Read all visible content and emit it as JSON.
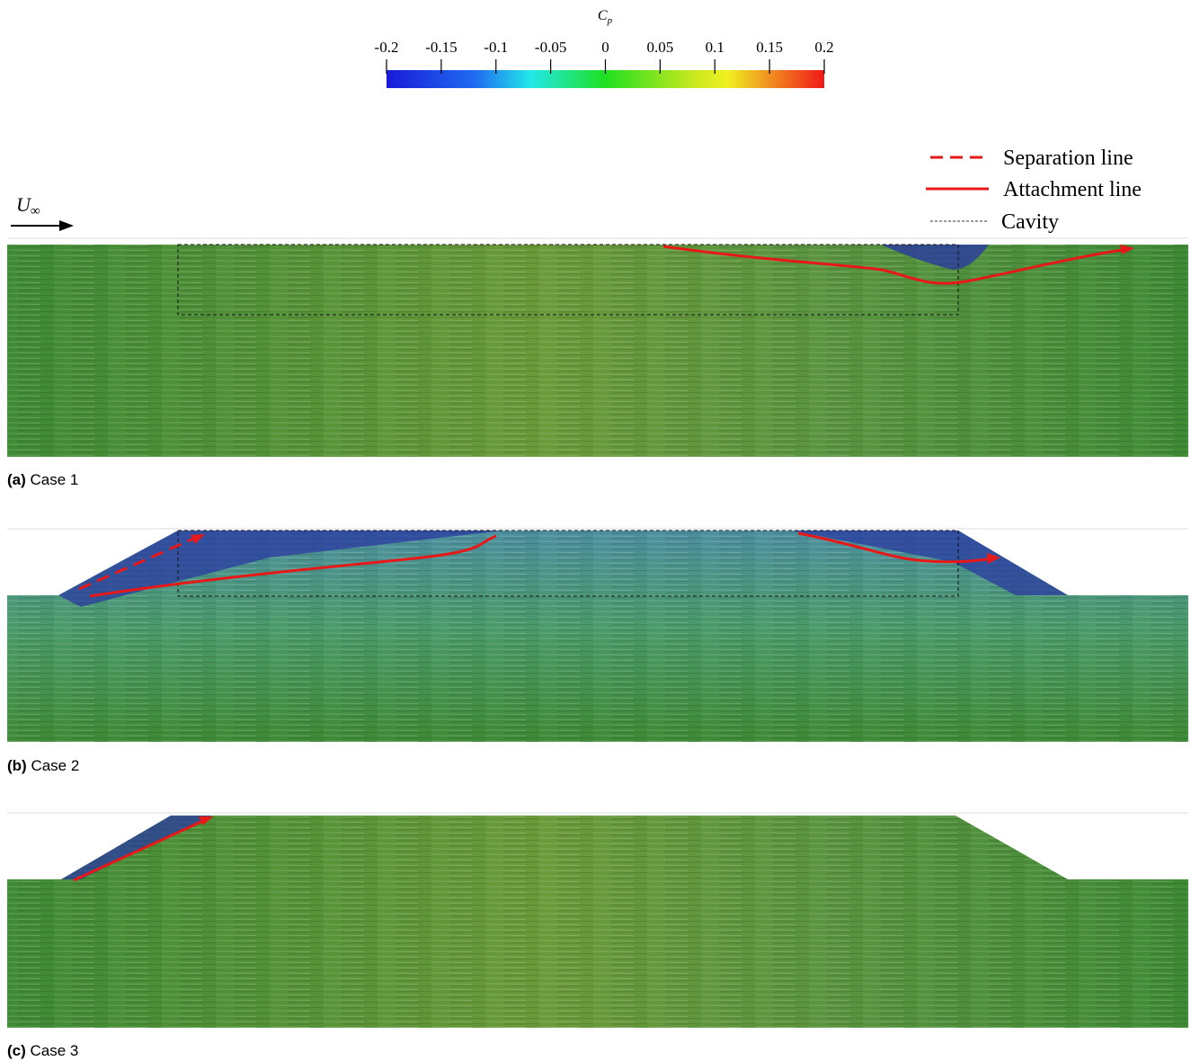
{
  "colorbar": {
    "label": "C",
    "label_sub": "p",
    "lim": [
      -0.2,
      0.2
    ],
    "ticks": [
      -0.2,
      -0.15,
      -0.1,
      -0.05,
      0,
      0.05,
      0.1,
      0.15,
      0.2
    ]
  },
  "freestream": {
    "symbol": "U",
    "sub": "∞"
  },
  "legend": [
    "Separation line",
    "Attachment line",
    "Cavity"
  ],
  "panels": [
    {
      "label": "(a)",
      "caption": "Case 1"
    },
    {
      "label": "(b)",
      "caption": "Case 2"
    },
    {
      "label": "(c)",
      "caption": "Case 3"
    }
  ]
}
